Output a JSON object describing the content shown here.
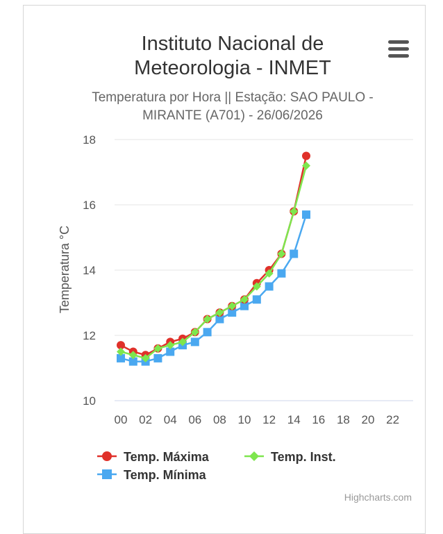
{
  "header": {
    "title_line1": "Instituto Nacional de",
    "title_line2": "Meteorologia - INMET",
    "subtitle_line1": "Temperatura por Hora || Estação: SAO PAULO -",
    "subtitle_line2": "MIRANTE (A701) - 26/06/2026",
    "menu_icon": "hamburger-menu-icon"
  },
  "credits": "Highcharts.com",
  "chart_data": {
    "type": "line",
    "title": "Instituto Nacional de Meteorologia - INMET",
    "subtitle": "Temperatura por Hora || Estação: SAO PAULO - MIRANTE (A701) - 26/06/2026",
    "xlabel": "",
    "ylabel": "Temperatura °C",
    "x": [
      0,
      1,
      2,
      3,
      4,
      5,
      6,
      7,
      8,
      9,
      10,
      11,
      12,
      13,
      14,
      15
    ],
    "x_ticks": [
      "00",
      "02",
      "04",
      "06",
      "08",
      "10",
      "12",
      "14",
      "16",
      "18",
      "20",
      "22"
    ],
    "xlim": [
      0,
      23
    ],
    "y_ticks": [
      10,
      12,
      14,
      16,
      18
    ],
    "ylim": [
      10,
      18
    ],
    "grid": true,
    "legend_position": "bottom",
    "series": [
      {
        "name": "Temp. Máxima",
        "color": "#e0312a",
        "marker": "circle",
        "values": [
          11.7,
          11.5,
          11.4,
          11.6,
          11.8,
          11.9,
          12.1,
          12.5,
          12.7,
          12.9,
          13.1,
          13.6,
          14.0,
          14.5,
          15.8,
          17.5
        ]
      },
      {
        "name": "Temp. Inst.",
        "color": "#7ee64e",
        "marker": "diamond",
        "values": [
          11.5,
          11.4,
          11.3,
          11.6,
          11.7,
          11.8,
          12.1,
          12.5,
          12.7,
          12.9,
          13.1,
          13.5,
          13.9,
          14.5,
          15.8,
          17.2
        ]
      },
      {
        "name": "Temp. Mínima",
        "color": "#4aa8f0",
        "marker": "square",
        "values": [
          11.3,
          11.2,
          11.2,
          11.3,
          11.5,
          11.7,
          11.8,
          12.1,
          12.5,
          12.7,
          12.9,
          13.1,
          13.5,
          13.9,
          14.5,
          15.7
        ]
      }
    ]
  }
}
